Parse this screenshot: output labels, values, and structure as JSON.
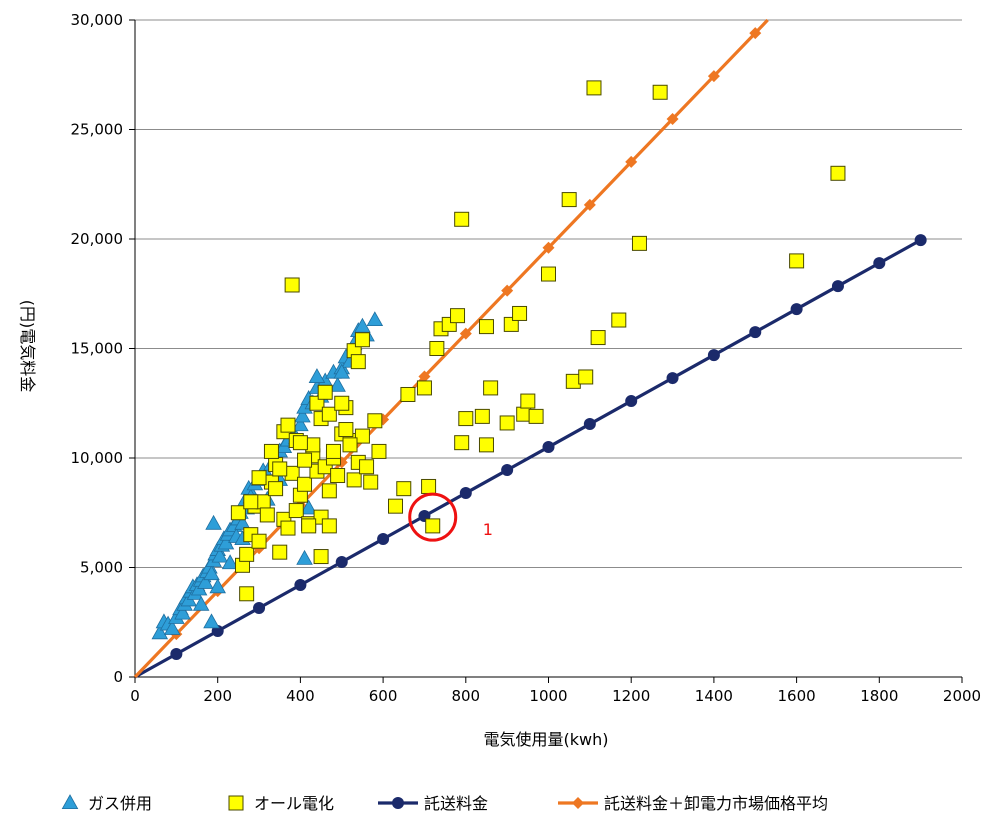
{
  "chart_data": {
    "type": "scatter",
    "xlabel": "電気使用量(kwh)",
    "ylabel": "(円)電気料金",
    "xlim": [
      0,
      2000
    ],
    "ylim": [
      0,
      30000
    ],
    "x_ticks": [
      "0",
      "200",
      "400",
      "600",
      "800",
      "1000",
      "1200",
      "1400",
      "1600",
      "1800",
      "2000"
    ],
    "y_ticks": [
      "0",
      "5,000",
      "10,000",
      "15,000",
      "20,000",
      "25,000",
      "30,000"
    ],
    "grid": "horizontal",
    "legend_position": "bottom",
    "colors": {
      "gas": "#2e9ed8",
      "gas_edge": "#1f6fa0",
      "allelec": "#ffff00",
      "allelec_edge": "#4a4a00",
      "transport": "#1b2a6b",
      "market": "#ee7722",
      "annotation": "#ee1111",
      "grid": "#8c8c8c"
    },
    "series": [
      {
        "name": "ガス併用",
        "marker": "triangle",
        "points": [
          [
            60,
            2000
          ],
          [
            70,
            2500
          ],
          [
            80,
            2400
          ],
          [
            90,
            2200
          ],
          [
            100,
            2700
          ],
          [
            110,
            3100
          ],
          [
            115,
            2900
          ],
          [
            120,
            3300
          ],
          [
            125,
            3600
          ],
          [
            130,
            3500
          ],
          [
            135,
            3900
          ],
          [
            140,
            4100
          ],
          [
            145,
            3800
          ],
          [
            150,
            4200
          ],
          [
            155,
            4000
          ],
          [
            160,
            4400
          ],
          [
            165,
            4600
          ],
          [
            170,
            4300
          ],
          [
            175,
            4800
          ],
          [
            180,
            5000
          ],
          [
            185,
            4700
          ],
          [
            190,
            5300
          ],
          [
            195,
            5600
          ],
          [
            200,
            5800
          ],
          [
            205,
            5500
          ],
          [
            210,
            6000
          ],
          [
            215,
            6300
          ],
          [
            220,
            6100
          ],
          [
            225,
            6500
          ],
          [
            230,
            6700
          ],
          [
            240,
            6900
          ],
          [
            245,
            6400
          ],
          [
            250,
            7200
          ],
          [
            255,
            7500
          ],
          [
            260,
            7000
          ],
          [
            265,
            8000
          ],
          [
            270,
            7700
          ],
          [
            275,
            8600
          ],
          [
            280,
            8200
          ],
          [
            290,
            8800
          ],
          [
            300,
            9000
          ],
          [
            310,
            9400
          ],
          [
            320,
            9200
          ],
          [
            330,
            9700
          ],
          [
            340,
            9900
          ],
          [
            350,
            10300
          ],
          [
            360,
            10500
          ],
          [
            370,
            10800
          ],
          [
            380,
            11200
          ],
          [
            390,
            10900
          ],
          [
            400,
            11500
          ],
          [
            405,
            11900
          ],
          [
            410,
            12300
          ],
          [
            420,
            12700
          ],
          [
            430,
            12500
          ],
          [
            440,
            13200
          ],
          [
            450,
            12800
          ],
          [
            460,
            13500
          ],
          [
            480,
            13900
          ],
          [
            490,
            13300
          ],
          [
            500,
            14100
          ],
          [
            510,
            14600
          ],
          [
            520,
            14400
          ],
          [
            530,
            15200
          ],
          [
            540,
            15800
          ],
          [
            560,
            15600
          ],
          [
            580,
            16300
          ],
          [
            420,
            7700
          ],
          [
            410,
            5400
          ],
          [
            185,
            2500
          ],
          [
            190,
            7000
          ],
          [
            160,
            3300
          ],
          [
            200,
            4100
          ],
          [
            230,
            5200
          ],
          [
            260,
            6300
          ],
          [
            320,
            8100
          ],
          [
            350,
            9000
          ],
          [
            440,
            13700
          ],
          [
            500,
            13900
          ],
          [
            550,
            16000
          ]
        ]
      },
      {
        "name": "オール電化",
        "marker": "square",
        "points": [
          [
            270,
            3800
          ],
          [
            260,
            5100
          ],
          [
            270,
            5600
          ],
          [
            280,
            6500
          ],
          [
            290,
            7800
          ],
          [
            300,
            6200
          ],
          [
            310,
            8000
          ],
          [
            320,
            7400
          ],
          [
            330,
            8900
          ],
          [
            340,
            9700
          ],
          [
            350,
            5700
          ],
          [
            360,
            7200
          ],
          [
            370,
            6800
          ],
          [
            380,
            9300
          ],
          [
            390,
            7600
          ],
          [
            400,
            8300
          ],
          [
            410,
            8800
          ],
          [
            420,
            7000
          ],
          [
            430,
            10100
          ],
          [
            440,
            9400
          ],
          [
            450,
            7300
          ],
          [
            460,
            9600
          ],
          [
            470,
            8500
          ],
          [
            480,
            10000
          ],
          [
            490,
            9200
          ],
          [
            500,
            11100
          ],
          [
            510,
            12300
          ],
          [
            520,
            10800
          ],
          [
            530,
            9000
          ],
          [
            540,
            9800
          ],
          [
            550,
            11000
          ],
          [
            560,
            9600
          ],
          [
            570,
            8900
          ],
          [
            580,
            11700
          ],
          [
            590,
            10300
          ],
          [
            360,
            11200
          ],
          [
            370,
            11500
          ],
          [
            380,
            17900
          ],
          [
            330,
            10300
          ],
          [
            350,
            9500
          ],
          [
            390,
            10800
          ],
          [
            410,
            9900
          ],
          [
            420,
            6900
          ],
          [
            430,
            10600
          ],
          [
            440,
            12500
          ],
          [
            450,
            11800
          ],
          [
            460,
            13000
          ],
          [
            470,
            12000
          ],
          [
            480,
            10300
          ],
          [
            500,
            12500
          ],
          [
            510,
            11300
          ],
          [
            520,
            10600
          ],
          [
            530,
            14900
          ],
          [
            540,
            14400
          ],
          [
            550,
            15400
          ],
          [
            450,
            5500
          ],
          [
            470,
            6900
          ],
          [
            250,
            7500
          ],
          [
            280,
            8000
          ],
          [
            300,
            9100
          ],
          [
            340,
            8600
          ],
          [
            400,
            10700
          ],
          [
            630,
            7800
          ],
          [
            650,
            8600
          ],
          [
            660,
            12900
          ],
          [
            700,
            13200
          ],
          [
            710,
            8700
          ],
          [
            720,
            6900
          ],
          [
            730,
            15000
          ],
          [
            740,
            15900
          ],
          [
            760,
            16100
          ],
          [
            780,
            16500
          ],
          [
            790,
            10700
          ],
          [
            800,
            11800
          ],
          [
            790,
            20900
          ],
          [
            840,
            11900
          ],
          [
            850,
            16000
          ],
          [
            850,
            10600
          ],
          [
            860,
            13200
          ],
          [
            900,
            11600
          ],
          [
            910,
            16100
          ],
          [
            930,
            16600
          ],
          [
            940,
            12000
          ],
          [
            950,
            12600
          ],
          [
            970,
            11900
          ],
          [
            1000,
            18400
          ],
          [
            1050,
            21800
          ],
          [
            1060,
            13500
          ],
          [
            1090,
            13700
          ],
          [
            1110,
            26900
          ],
          [
            1120,
            15500
          ],
          [
            1170,
            16300
          ],
          [
            1220,
            19800
          ],
          [
            1270,
            26700
          ],
          [
            1600,
            19000
          ],
          [
            1700,
            23000
          ]
        ]
      },
      {
        "name": "託送料金",
        "marker": "circle",
        "line": true,
        "points": [
          [
            0,
            0
          ],
          [
            100,
            1050
          ],
          [
            200,
            2100
          ],
          [
            300,
            3150
          ],
          [
            400,
            4200
          ],
          [
            500,
            5250
          ],
          [
            600,
            6300
          ],
          [
            700,
            7350
          ],
          [
            800,
            8400
          ],
          [
            900,
            9450
          ],
          [
            1000,
            10500
          ],
          [
            1100,
            11550
          ],
          [
            1200,
            12600
          ],
          [
            1300,
            13650
          ],
          [
            1400,
            14700
          ],
          [
            1500,
            15750
          ],
          [
            1600,
            16800
          ],
          [
            1700,
            17850
          ],
          [
            1800,
            18900
          ],
          [
            1900,
            19950
          ]
        ]
      },
      {
        "name": "託送料金＋卸電力市場価格平均",
        "marker": "diamond",
        "line": true,
        "points": [
          [
            0,
            0
          ],
          [
            100,
            1960
          ],
          [
            200,
            3920
          ],
          [
            300,
            5880
          ],
          [
            400,
            7840
          ],
          [
            500,
            9800
          ],
          [
            600,
            11760
          ],
          [
            700,
            13720
          ],
          [
            800,
            15680
          ],
          [
            900,
            17640
          ],
          [
            1000,
            19600
          ],
          [
            1100,
            21560
          ],
          [
            1200,
            23520
          ],
          [
            1300,
            25480
          ],
          [
            1400,
            27440
          ],
          [
            1500,
            29400
          ],
          [
            1530,
            30000
          ]
        ]
      }
    ],
    "annotation": {
      "label": "1",
      "x": 720,
      "y": 7300
    }
  }
}
